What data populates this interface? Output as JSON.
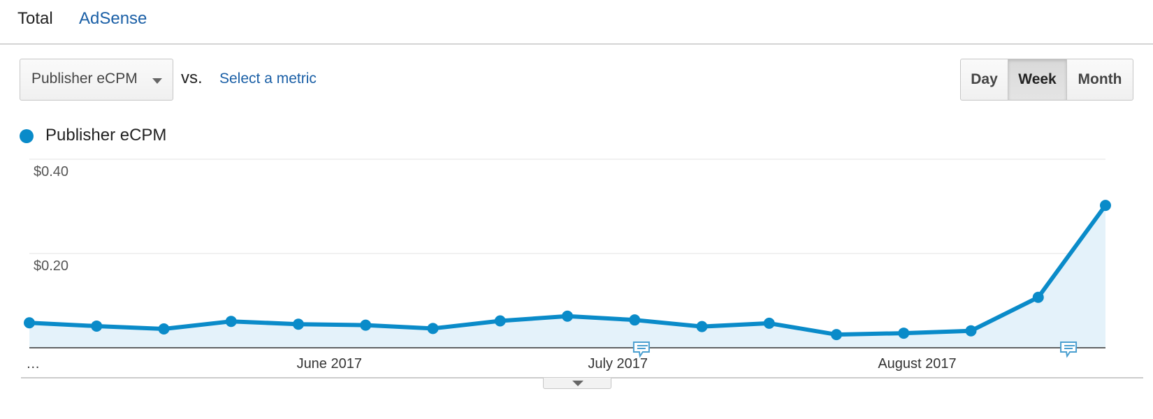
{
  "tabs": {
    "total": "Total",
    "adsense": "AdSense"
  },
  "controls": {
    "metric": "Publisher eCPM",
    "vs": "vs.",
    "select_metric": "Select a metric",
    "periods": {
      "day": "Day",
      "week": "Week",
      "month": "Month"
    },
    "selected_period": "Week"
  },
  "colors": {
    "series": "#0a8bc9",
    "area": "#e4f2fa",
    "link": "#1a5fa6"
  },
  "icons": {
    "dropdown": "chevron-down-icon",
    "annotation": "speech-bubble-icon",
    "expand": "caret-down-icon"
  },
  "chart_data": {
    "type": "line",
    "series": [
      {
        "name": "Publisher eCPM",
        "values": [
          0.053,
          0.046,
          0.04,
          0.056,
          0.05,
          0.048,
          0.041,
          0.057,
          0.067,
          0.059,
          0.045,
          0.052,
          0.028,
          0.031,
          0.036,
          0.107,
          0.302
        ]
      }
    ],
    "x_labels": [
      {
        "text": "…",
        "index": -0.05
      },
      {
        "text": "June 2017",
        "index": 4.46
      },
      {
        "text": "July 2017",
        "index": 8.75
      },
      {
        "text": "August 2017",
        "index": 13.2
      }
    ],
    "y_ticks": [
      {
        "value": 0.4,
        "label": "$0.40"
      },
      {
        "value": 0.2,
        "label": "$0.20"
      }
    ],
    "ylim": [
      0,
      0.4
    ],
    "annotations": [
      {
        "index": 9.1
      },
      {
        "index": 15.45
      }
    ],
    "grid": true,
    "area_fill": true
  }
}
